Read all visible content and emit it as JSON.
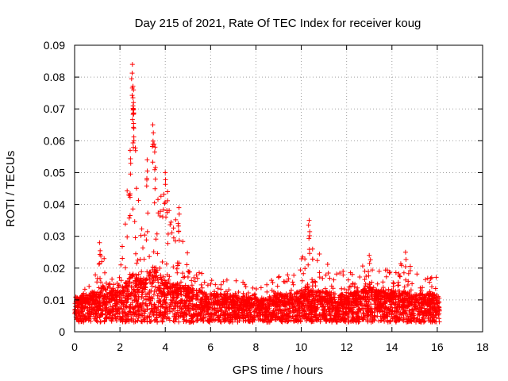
{
  "chart_data": {
    "type": "scatter",
    "title": "Day 215 of 2021, Rate Of TEC Index for receiver koug",
    "xlabel": "GPS time / hours",
    "ylabel": "ROTI / TECUs",
    "xlim": [
      0,
      18
    ],
    "ylim": [
      0,
      0.09
    ],
    "xticks": [
      0,
      2,
      4,
      6,
      8,
      10,
      12,
      14,
      16,
      18
    ],
    "yticks": [
      0,
      0.01,
      0.02,
      0.03,
      0.04,
      0.05,
      0.06,
      0.07,
      0.08,
      0.09
    ],
    "ytick_labels": [
      "0",
      "0.01",
      "0.02",
      "0.03",
      "0.04",
      "0.05",
      "0.06",
      "0.07",
      "0.08",
      "0.09"
    ],
    "grid": true,
    "marker": "+",
    "color": "#ff0000",
    "series": [
      {
        "name": "ROTI",
        "envelope": {
          "x": [
            0.0,
            0.5,
            1.0,
            1.2,
            1.5,
            2.0,
            2.3,
            2.5,
            2.7,
            3.0,
            3.3,
            3.5,
            3.8,
            4.0,
            4.3,
            4.6,
            5.0,
            5.5,
            6.0,
            6.5,
            7.0,
            7.5,
            8.0,
            8.5,
            9.0,
            9.5,
            10.0,
            10.3,
            10.6,
            11.0,
            11.5,
            12.0,
            12.5,
            13.0,
            13.5,
            14.0,
            14.5,
            15.0,
            15.5,
            16.0,
            16.1
          ],
          "typical": [
            0.008,
            0.009,
            0.01,
            0.012,
            0.01,
            0.01,
            0.013,
            0.016,
            0.014,
            0.014,
            0.017,
            0.018,
            0.015,
            0.014,
            0.012,
            0.012,
            0.011,
            0.01,
            0.009,
            0.009,
            0.009,
            0.008,
            0.008,
            0.008,
            0.009,
            0.009,
            0.01,
            0.011,
            0.01,
            0.01,
            0.009,
            0.009,
            0.01,
            0.011,
            0.01,
            0.01,
            0.01,
            0.009,
            0.009,
            0.009,
            0.008
          ],
          "upper": [
            0.011,
            0.014,
            0.02,
            0.029,
            0.016,
            0.018,
            0.057,
            0.084,
            0.06,
            0.04,
            0.054,
            0.065,
            0.044,
            0.05,
            0.032,
            0.039,
            0.024,
            0.019,
            0.017,
            0.016,
            0.017,
            0.016,
            0.014,
            0.016,
            0.018,
            0.02,
            0.024,
            0.035,
            0.028,
            0.022,
            0.022,
            0.019,
            0.02,
            0.024,
            0.021,
            0.022,
            0.025,
            0.019,
            0.018,
            0.017,
            0.013
          ]
        },
        "peaks": [
          {
            "x": 1.1,
            "y": 0.028
          },
          {
            "x": 2.45,
            "y": 0.057
          },
          {
            "x": 2.55,
            "y": 0.084
          },
          {
            "x": 2.6,
            "y": 0.076
          },
          {
            "x": 2.6,
            "y": 0.072
          },
          {
            "x": 2.6,
            "y": 0.07
          },
          {
            "x": 3.2,
            "y": 0.054
          },
          {
            "x": 3.45,
            "y": 0.065
          },
          {
            "x": 3.55,
            "y": 0.058
          },
          {
            "x": 4.0,
            "y": 0.05
          },
          {
            "x": 4.1,
            "y": 0.044
          },
          {
            "x": 4.6,
            "y": 0.039
          },
          {
            "x": 10.35,
            "y": 0.035
          },
          {
            "x": 10.5,
            "y": 0.026
          },
          {
            "x": 13.0,
            "y": 0.024
          },
          {
            "x": 14.6,
            "y": 0.025
          }
        ]
      }
    ]
  }
}
